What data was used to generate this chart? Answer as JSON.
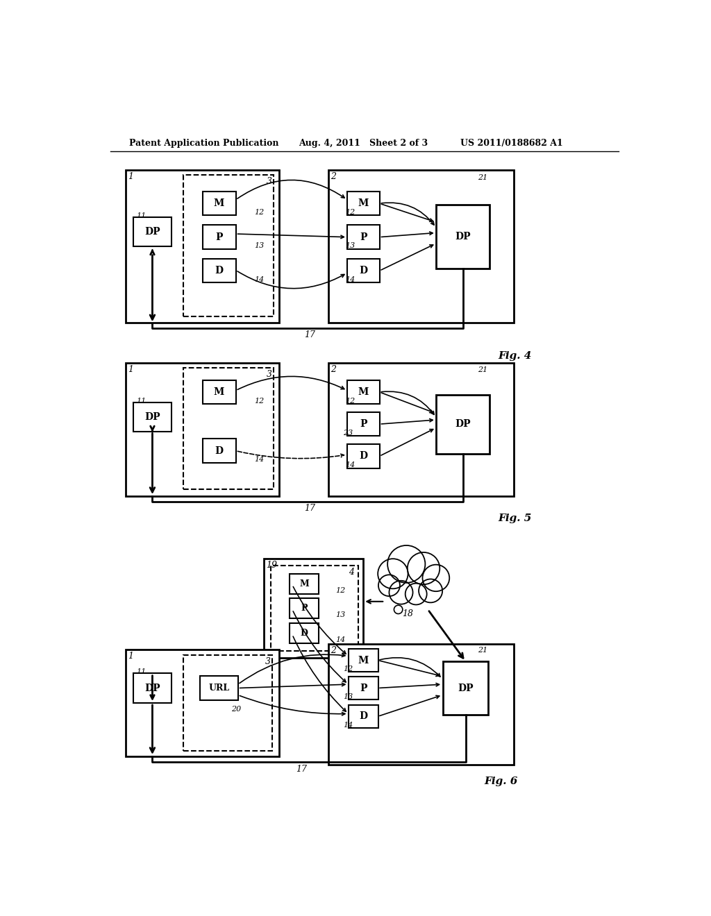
{
  "header_left": "Patent Application Publication",
  "header_mid": "Aug. 4, 2011   Sheet 2 of 3",
  "header_right": "US 2011/0188682 A1",
  "bg_color": "#ffffff",
  "fig4_label": "Fig. 4",
  "fig5_label": "Fig. 5",
  "fig6_label": "Fig. 6"
}
